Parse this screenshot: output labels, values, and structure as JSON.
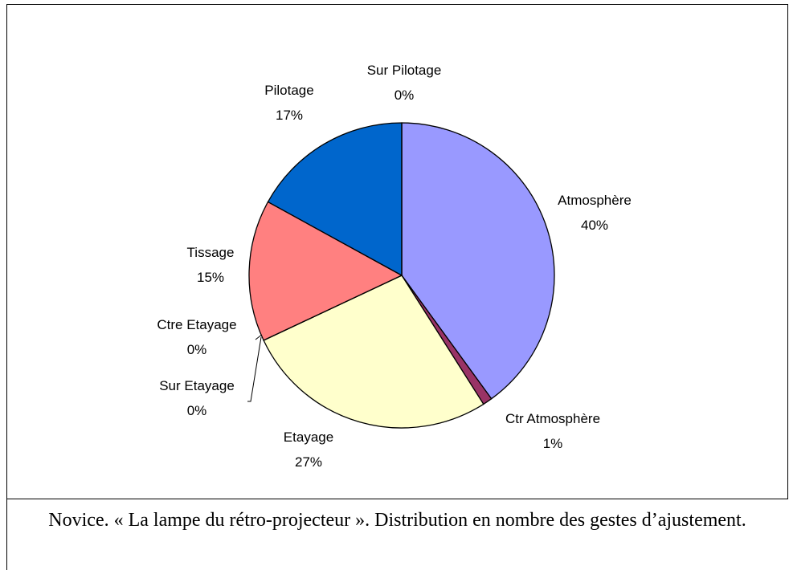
{
  "chart_data": {
    "type": "pie",
    "categories": [
      "Atmosphère",
      "Ctr Atmosphère",
      "Etayage",
      "Sur Etayage",
      "Ctre Etayage",
      "Tissage",
      "Pilotage",
      "Sur Pilotage"
    ],
    "values": [
      40,
      1,
      27,
      0,
      0,
      15,
      17,
      0
    ],
    "value_labels": [
      "40%",
      "1%",
      "27%",
      "0%",
      "0%",
      "15%",
      "17%",
      "0%"
    ],
    "colors": [
      "#9999ff",
      "#993366",
      "#ffffcc",
      "#ccffff",
      "#660066",
      "#ff8080",
      "#0066cc",
      "#ccccff"
    ]
  },
  "caption": "Novice. « La lampe du rétro-projecteur ». Distribution en nombre des gestes d’ajustement."
}
